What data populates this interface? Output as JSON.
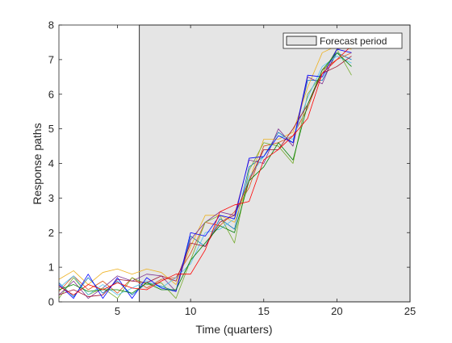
{
  "chart_data": {
    "type": "line",
    "xlabel": "Time (quarters)",
    "ylabel": "Response paths",
    "xlim": [
      1,
      25
    ],
    "ylim": [
      0,
      8
    ],
    "xticks": [
      5,
      10,
      15,
      20,
      25
    ],
    "yticks": [
      0,
      1,
      2,
      3,
      4,
      5,
      6,
      7,
      8
    ],
    "grid": false,
    "forecast_start": 6.5,
    "legend": {
      "label": "Forecast period",
      "placement": "top-right"
    },
    "colors": {
      "shade": "#e5e5e5",
      "series": [
        "#0072bd",
        "#d95319",
        "#edb120",
        "#7e2f8e",
        "#77ac30",
        "#4dbeee",
        "#a2142f",
        "#0000ff",
        "#008000",
        "#ff0000"
      ]
    },
    "x": [
      1,
      2,
      3,
      4,
      5,
      6,
      7,
      8,
      9,
      10,
      11,
      12,
      13,
      14,
      15,
      16,
      17,
      18,
      19,
      20,
      21
    ],
    "series": [
      {
        "values": [
          0.55,
          0.15,
          0.7,
          0.25,
          0.6,
          0.2,
          0.55,
          0.45,
          0.3,
          1.9,
          1.6,
          2.4,
          2.1,
          3.9,
          4.2,
          4.9,
          4.6,
          6.4,
          6.4,
          7.2,
          7.0
        ]
      },
      {
        "values": [
          0.3,
          0.75,
          0.35,
          0.6,
          0.25,
          0.7,
          0.4,
          0.65,
          0.7,
          1.4,
          2.3,
          2.2,
          2.6,
          3.3,
          4.5,
          4.6,
          4.8,
          5.6,
          6.7,
          7.0,
          7.2
        ]
      },
      {
        "values": [
          0.65,
          0.9,
          0.5,
          0.85,
          0.95,
          0.8,
          0.95,
          0.85,
          0.5,
          1.6,
          2.5,
          2.5,
          2.3,
          3.5,
          4.7,
          4.7,
          4.9,
          6.2,
          7.2,
          7.4,
          7.3
        ]
      },
      {
        "values": [
          0.2,
          0.6,
          0.1,
          0.4,
          0.75,
          0.6,
          0.8,
          0.75,
          0.3,
          1.8,
          2.3,
          2.6,
          2.5,
          4.1,
          4.0,
          5.0,
          4.5,
          6.5,
          6.3,
          7.3,
          7.4
        ]
      },
      {
        "values": [
          0.1,
          0.7,
          0.2,
          0.4,
          0.1,
          0.7,
          0.5,
          0.55,
          0.1,
          1.2,
          2.3,
          2.5,
          1.7,
          3.8,
          4.6,
          4.5,
          4.0,
          6.0,
          6.6,
          7.3,
          6.55
        ]
      },
      {
        "values": [
          0.4,
          0.75,
          0.2,
          0.5,
          0.2,
          0.4,
          0.6,
          0.4,
          0.7,
          1.1,
          2.0,
          2.1,
          2.4,
          3.6,
          4.2,
          4.8,
          4.7,
          5.9,
          6.8,
          7.1,
          6.9
        ]
      },
      {
        "values": [
          0.2,
          0.35,
          0.15,
          0.2,
          0.65,
          0.6,
          0.55,
          0.75,
          0.6,
          1.7,
          1.6,
          2.3,
          2.5,
          3.5,
          4.4,
          4.4,
          5.0,
          5.7,
          6.6,
          6.8,
          7.1
        ]
      },
      {
        "values": [
          0.5,
          0.1,
          0.8,
          0.1,
          0.7,
          0.1,
          0.7,
          0.4,
          0.3,
          2.0,
          1.9,
          2.5,
          2.4,
          4.15,
          4.2,
          4.8,
          4.6,
          6.55,
          6.5,
          7.3,
          7.2
        ]
      },
      {
        "values": [
          0.35,
          0.5,
          0.3,
          0.35,
          0.35,
          0.25,
          0.55,
          0.35,
          0.35,
          1.2,
          1.7,
          2.2,
          2.0,
          3.5,
          3.9,
          4.6,
          4.1,
          5.7,
          6.7,
          7.2,
          6.8
        ]
      },
      {
        "values": [
          0.45,
          0.2,
          0.5,
          0.35,
          0.55,
          0.4,
          0.35,
          0.6,
          0.8,
          0.8,
          1.5,
          2.6,
          2.8,
          2.9,
          4.1,
          4.4,
          4.8,
          5.3,
          6.6,
          7.0,
          7.4
        ]
      }
    ]
  }
}
